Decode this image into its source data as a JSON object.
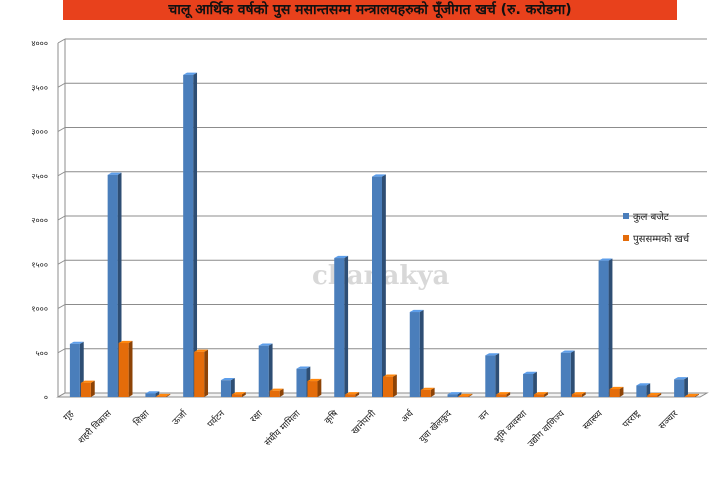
{
  "chart_data": {
    "type": "bar",
    "title": "चालू आर्थिक वर्षको पुस मसान्तसम्म मन्त्रालयहरुको पूँजीगत खर्च (रु. करोडमा)",
    "xlabel": "",
    "ylabel": "",
    "ylim": [
      0,
      4000
    ],
    "yticks": [
      "०",
      "५००",
      "१०००",
      "१५००",
      "२०००",
      "२५००",
      "३०००",
      "३५००",
      "४०००"
    ],
    "grid": true,
    "legend_position": "right",
    "categories": [
      "गृह",
      "शहरी विकास",
      "शिक्षा",
      "ऊर्जा",
      "पर्यटन",
      "रक्षा",
      "संघीय मामिला",
      "कृषि",
      "खानेपानी",
      "अर्थ",
      "युवा खेलकुद",
      "वन",
      "भूमि व्यवस्था",
      "उद्योग वाणिज्य",
      "स्वास्थ्य",
      "परराष्ट्र",
      "सञ्चार"
    ],
    "series": [
      {
        "name": "कुल बजेट",
        "color": "#4a7ebb",
        "values": [
          600,
          2510,
          40,
          3640,
          190,
          580,
          320,
          1570,
          2490,
          960,
          30,
          470,
          260,
          500,
          1540,
          130,
          200
        ]
      },
      {
        "name": "पुससम्मको खर्च",
        "color": "#e46c0a",
        "values": [
          160,
          610,
          10,
          510,
          30,
          70,
          180,
          30,
          230,
          80,
          10,
          30,
          30,
          30,
          90,
          20,
          10
        ]
      }
    ]
  },
  "watermark": "chanakya"
}
